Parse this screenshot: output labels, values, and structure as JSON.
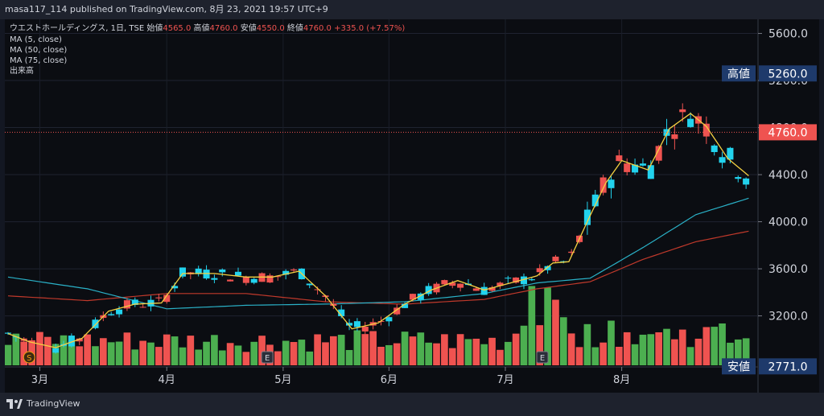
{
  "header": {
    "published": "masa117_114 published on TradingView.com, 8月 23, 2021 19:57 UTC+9"
  },
  "legend": {
    "symbol": "ウエストホールディングス, 1日, TSE",
    "open_label": "始値",
    "open_value": "4565.0",
    "high_label": "高値",
    "high_value": "4760.0",
    "low_label": "安値",
    "low_value": "4550.0",
    "close_label": "終値",
    "close_value": "4760.0",
    "change": "+335.0 (+7.57%)",
    "indicators": [
      "MA (5, close)",
      "MA (50, close)",
      "MA (75, close)",
      "出来高"
    ]
  },
  "footer": {
    "brand": "TradingView"
  },
  "colors": {
    "up": "#26a69a",
    "up_bright": "#22d3ee",
    "down": "#ef5350",
    "ma5": "#f5d142",
    "ma50": "#2ab1c7",
    "ma75": "#c0392b",
    "vol_up": "#4caf50",
    "vol_down": "#ef5350"
  },
  "chart_data": {
    "type": "candlestick",
    "ylim": [
      2780,
      5720
    ],
    "y_ticks": [
      "5600.0",
      "5200.0",
      "4800.0",
      "4400.0",
      "4000.0",
      "3600.0",
      "3200.0"
    ],
    "x_ticks": [
      "3月",
      "4月",
      "5月",
      "6月",
      "7月",
      "8月"
    ],
    "price_labels": [
      {
        "label": "高値",
        "value": "5260.0",
        "bg": "#1e3a6b"
      },
      {
        "label": "",
        "value": "4760.0",
        "bg": "#ef5350"
      },
      {
        "label": "安値",
        "value": "2771.0",
        "bg": "#1e3a6b"
      }
    ],
    "events": [
      {
        "label": "S",
        "index": 8
      },
      {
        "label": "E",
        "index": 98
      },
      {
        "label": "E",
        "index": 202
      }
    ],
    "ma_anchors": {
      "ma5": [
        [
          0,
          3050
        ],
        [
          8,
          2980
        ],
        [
          18,
          2930
        ],
        [
          28,
          3010
        ],
        [
          38,
          3240
        ],
        [
          48,
          3300
        ],
        [
          58,
          3310
        ],
        [
          66,
          3560
        ],
        [
          78,
          3560
        ],
        [
          90,
          3530
        ],
        [
          100,
          3530
        ],
        [
          110,
          3580
        ],
        [
          120,
          3370
        ],
        [
          130,
          3090
        ],
        [
          140,
          3140
        ],
        [
          150,
          3300
        ],
        [
          160,
          3420
        ],
        [
          170,
          3500
        ],
        [
          180,
          3420
        ],
        [
          190,
          3480
        ],
        [
          200,
          3540
        ],
        [
          206,
          3650
        ],
        [
          212,
          3660
        ],
        [
          220,
          4050
        ],
        [
          226,
          4330
        ],
        [
          232,
          4520
        ],
        [
          242,
          4440
        ],
        [
          250,
          4790
        ],
        [
          258,
          4920
        ],
        [
          264,
          4810
        ],
        [
          272,
          4540
        ],
        [
          280,
          4390
        ]
      ],
      "ma50": [
        [
          0,
          3530
        ],
        [
          30,
          3430
        ],
        [
          60,
          3260
        ],
        [
          90,
          3290
        ],
        [
          120,
          3300
        ],
        [
          150,
          3320
        ],
        [
          180,
          3390
        ],
        [
          200,
          3480
        ],
        [
          220,
          3520
        ],
        [
          240,
          3780
        ],
        [
          260,
          4060
        ],
        [
          280,
          4200
        ]
      ],
      "ma75": [
        [
          0,
          3370
        ],
        [
          30,
          3330
        ],
        [
          60,
          3390
        ],
        [
          90,
          3390
        ],
        [
          120,
          3320
        ],
        [
          150,
          3300
        ],
        [
          180,
          3340
        ],
        [
          200,
          3430
        ],
        [
          220,
          3490
        ],
        [
          240,
          3680
        ],
        [
          260,
          3830
        ],
        [
          280,
          3920
        ]
      ]
    },
    "vol_max": 18
  }
}
